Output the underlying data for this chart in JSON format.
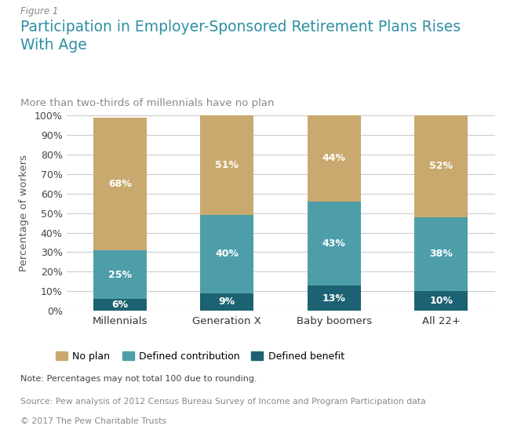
{
  "figure_label": "Figure 1",
  "title": "Participation in Employer-Sponsored Retirement Plans Rises\nWith Age",
  "subtitle": "More than two-thirds of millennials have no plan",
  "categories": [
    "Millennials",
    "Generation X",
    "Baby boomers",
    "All 22+"
  ],
  "no_plan": [
    68,
    51,
    44,
    52
  ],
  "defined_contribution": [
    25,
    40,
    43,
    38
  ],
  "defined_benefit": [
    6,
    9,
    13,
    10
  ],
  "color_no_plan": "#c9a96e",
  "color_defined_contribution": "#4e9eaa",
  "color_defined_benefit": "#1d6272",
  "ylabel": "Percentage of workers",
  "ylim": [
    0,
    100
  ],
  "yticks": [
    0,
    10,
    20,
    30,
    40,
    50,
    60,
    70,
    80,
    90,
    100
  ],
  "legend_labels": [
    "No plan",
    "Defined contribution",
    "Defined benefit"
  ],
  "note": "Note: Percentages may not total 100 due to rounding.",
  "source": "Source: Pew analysis of 2012 Census Bureau Survey of Income and Program Participation data",
  "copyright": "© 2017 The Pew Charitable Trusts",
  "title_color": "#2e8fa3",
  "figure_label_color": "#888888",
  "subtitle_color": "#888888",
  "text_color_dark": "#444444",
  "background_color": "#ffffff",
  "bar_width": 0.5
}
